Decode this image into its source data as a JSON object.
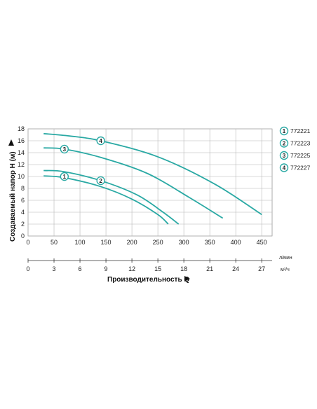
{
  "chart_data": {
    "type": "line",
    "ylabel": "Создаваемый напор H (м)",
    "xlabel": "Производительность Q",
    "x_unit": "л/мин",
    "x2_unit": "м³/ч",
    "xlim": [
      0,
      470
    ],
    "ylim": [
      0,
      18
    ],
    "x_ticks": [
      0,
      50,
      100,
      150,
      200,
      250,
      300,
      350,
      400,
      450
    ],
    "x2_ticks": [
      0,
      3,
      6,
      9,
      12,
      15,
      18,
      21,
      24,
      27
    ],
    "y_ticks": [
      0,
      2,
      4,
      6,
      8,
      10,
      12,
      14,
      16,
      18
    ],
    "grid": true,
    "legend_position": "right",
    "series": [
      {
        "marker": "1",
        "name": "772221",
        "color": "#2aa9a4",
        "x": [
          30,
          70,
          140,
          200,
          250,
          270
        ],
        "y": [
          10.1,
          9.8,
          8.3,
          6.2,
          3.6,
          2.0
        ],
        "marker_x": 70,
        "marker_y": 10.0
      },
      {
        "marker": "2",
        "name": "772223",
        "color": "#2aa9a4",
        "x": [
          30,
          70,
          140,
          210,
          260,
          290
        ],
        "y": [
          11.0,
          10.8,
          9.3,
          6.9,
          4.0,
          2.0
        ],
        "marker_x": 140,
        "marker_y": 9.3
      },
      {
        "marker": "3",
        "name": "772225",
        "color": "#2aa9a4",
        "x": [
          30,
          70,
          140,
          230,
          310,
          375
        ],
        "y": [
          14.8,
          14.6,
          13.2,
          10.5,
          6.5,
          3.0
        ],
        "marker_x": 70,
        "marker_y": 14.6
      },
      {
        "marker": "4",
        "name": "772227",
        "color": "#2aa9a4",
        "x": [
          30,
          80,
          140,
          250,
          360,
          450
        ],
        "y": [
          17.2,
          16.8,
          16.0,
          13.3,
          8.7,
          3.6
        ],
        "marker_x": 140,
        "marker_y": 16.0
      }
    ]
  }
}
